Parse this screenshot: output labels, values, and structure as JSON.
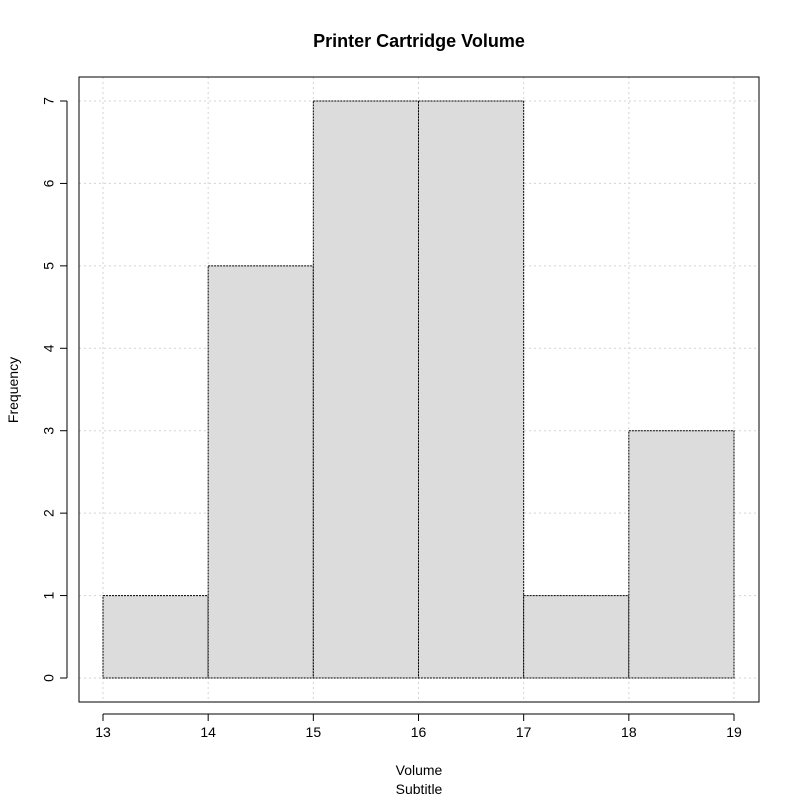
{
  "chart_data": {
    "type": "bar",
    "subtype": "histogram",
    "title": "Printer Cartridge Volume",
    "subtitle": "Subtitle",
    "xlabel": "Volume",
    "ylabel": "Frequency",
    "bins": [
      {
        "from": 13,
        "to": 14,
        "count": 1
      },
      {
        "from": 14,
        "to": 15,
        "count": 5
      },
      {
        "from": 15,
        "to": 16,
        "count": 7
      },
      {
        "from": 16,
        "to": 17,
        "count": 7
      },
      {
        "from": 17,
        "to": 18,
        "count": 1
      },
      {
        "from": 18,
        "to": 19,
        "count": 3
      }
    ],
    "xticks": [
      13,
      14,
      15,
      16,
      17,
      18,
      19
    ],
    "yticks": [
      0,
      1,
      2,
      3,
      4,
      5,
      6,
      7
    ],
    "xlim": [
      13,
      19
    ],
    "ylim": [
      0,
      7
    ],
    "grid": true,
    "colors": {
      "bar_fill": "#dcdcdc",
      "bar_border": "#000000",
      "grid": "#d3d3d3",
      "axis": "#000000"
    }
  }
}
